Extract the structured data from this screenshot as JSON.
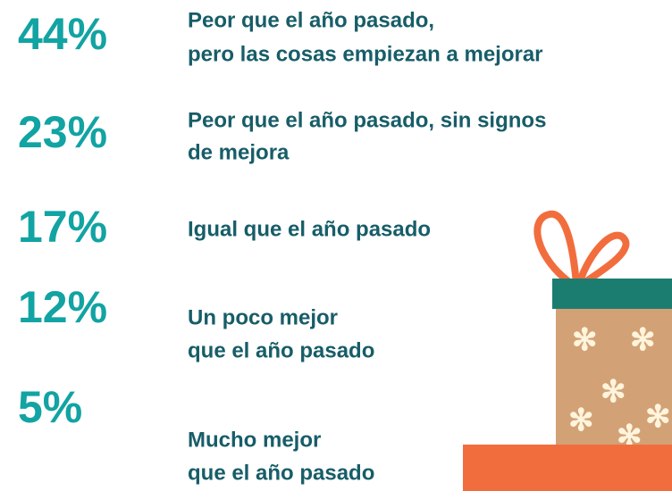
{
  "items": [
    {
      "percent": "44%",
      "lines": [
        "Peor que el año pasado,",
        "pero las cosas empiezan a mejorar"
      ]
    },
    {
      "percent": "23%",
      "lines": [
        "Peor que el año pasado, sin signos",
        "de mejora"
      ]
    },
    {
      "percent": "17%",
      "lines": [
        "Igual que el año pasado"
      ]
    },
    {
      "percent": "12%",
      "lines": [
        "Un poco mejor",
        "que el año pasado"
      ]
    },
    {
      "percent": "5%",
      "lines": [
        "Mucho mejor",
        "que el año pasado"
      ]
    }
  ]
}
